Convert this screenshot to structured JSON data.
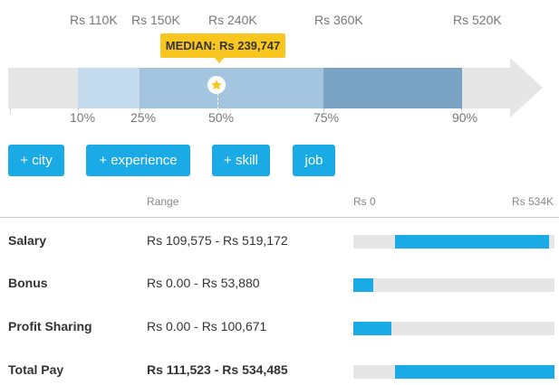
{
  "top_labels": [
    "Rs 110K",
    "Rs 150K",
    "Rs 240K",
    "Rs 360K",
    "Rs 520K"
  ],
  "median_label": "MEDIAN: Rs 239,747",
  "percentile_labels": [
    "10%",
    "25%",
    "50%",
    "75%",
    "90%"
  ],
  "buttons": [
    "+ city",
    "+ experience",
    "+ skill",
    "job"
  ],
  "table": {
    "range_header": "Range",
    "scale_min": "Rs 0",
    "scale_max": "Rs 534K",
    "scale_max_value": 534000,
    "rows": [
      {
        "label": "Salary",
        "range": "Rs 109,575 - Rs 519,172",
        "low": 109575,
        "high": 519172
      },
      {
        "label": "Bonus",
        "range": "Rs 0.00 - Rs 53,880",
        "low": 0,
        "high": 53880
      },
      {
        "label": "Profit Sharing",
        "range": "Rs 0.00 - Rs 100,671",
        "low": 0,
        "high": 100671
      },
      {
        "label": "Total Pay",
        "range": "Rs 111,523 - Rs 534,485",
        "low": 111523,
        "high": 534485
      }
    ]
  },
  "colors": {
    "accent": "#1aabe7",
    "median_badge": "#f8c61e",
    "track": "#e6e6e6",
    "band_10_25": "#c5dcee",
    "band_25_75": "#a4c5df",
    "band_75_90": "#7ba3c4"
  }
}
